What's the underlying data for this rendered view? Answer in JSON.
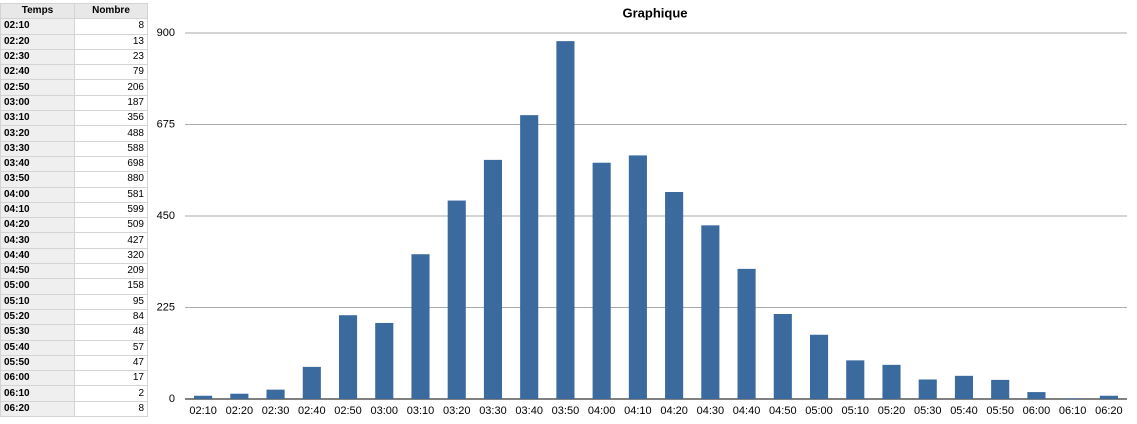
{
  "table": {
    "columns": [
      "Temps",
      "Nombre"
    ]
  },
  "chart_data": {
    "type": "bar",
    "title": "Graphique",
    "categories": [
      "02:10",
      "02:20",
      "02:30",
      "02:40",
      "02:50",
      "03:00",
      "03:10",
      "03:20",
      "03:30",
      "03:40",
      "03:50",
      "04:00",
      "04:10",
      "04:20",
      "04:30",
      "04:40",
      "04:50",
      "05:00",
      "05:10",
      "05:20",
      "05:30",
      "05:40",
      "05:50",
      "06:00",
      "06:10",
      "06:20"
    ],
    "values": [
      8,
      13,
      23,
      79,
      206,
      187,
      356,
      488,
      588,
      698,
      880,
      581,
      599,
      509,
      427,
      320,
      209,
      158,
      95,
      84,
      48,
      57,
      47,
      17,
      2,
      8
    ],
    "color": "#3b6a9f",
    "ylim": [
      0,
      900
    ],
    "yticks": [
      0,
      225,
      450,
      675,
      900
    ],
    "grid": true
  }
}
